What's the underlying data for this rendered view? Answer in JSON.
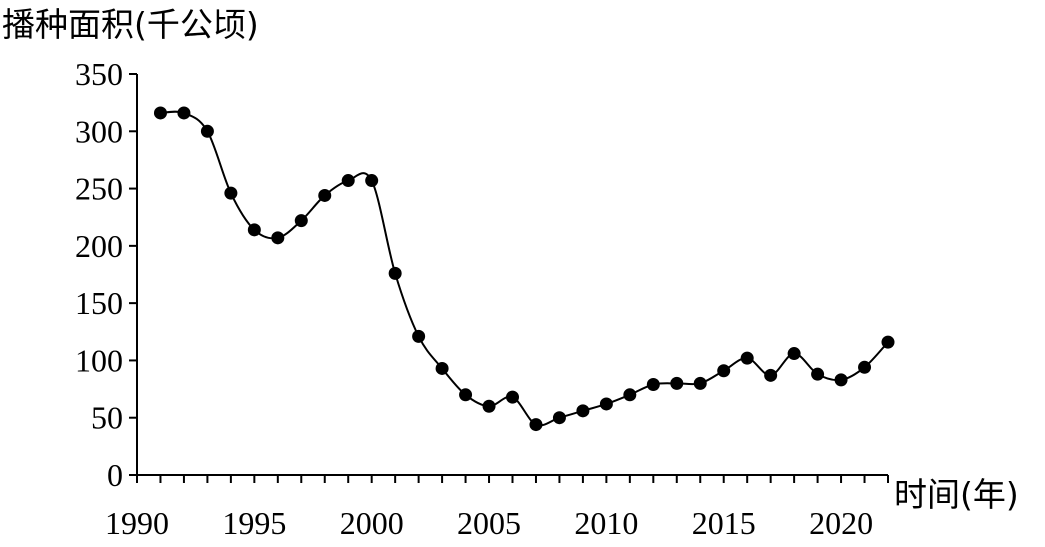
{
  "chart_data": {
    "type": "line",
    "ylabel": "播种面积(千公顷)",
    "xlabel": "时间(年)",
    "xlim": [
      1990,
      2022
    ],
    "ylim": [
      0,
      350
    ],
    "x_ticks": [
      "1990",
      "1995",
      "2000",
      "2005",
      "2010",
      "2015",
      "2020"
    ],
    "y_ticks": [
      "0",
      "50",
      "100",
      "150",
      "200",
      "250",
      "300",
      "350"
    ],
    "grid": false,
    "legend": "none",
    "smooth": true,
    "marker": "circle",
    "color": "#000000",
    "series": [
      {
        "x": [
          1991,
          1992,
          1993,
          1994,
          1995,
          1996,
          1997,
          1998,
          1999,
          2000,
          2001,
          2002,
          2003,
          2004,
          2005,
          2006,
          2007,
          2008,
          2009,
          2010,
          2011,
          2012,
          2013,
          2014,
          2015,
          2016,
          2017,
          2018,
          2019,
          2020,
          2021,
          2022
        ],
        "values": [
          316,
          316,
          300,
          246,
          214,
          207,
          222,
          244,
          257,
          257,
          176,
          121,
          93,
          70,
          60,
          68,
          44,
          50,
          56,
          62,
          70,
          79,
          80,
          80,
          91,
          102,
          87,
          106,
          88,
          83,
          94,
          116
        ]
      }
    ]
  }
}
